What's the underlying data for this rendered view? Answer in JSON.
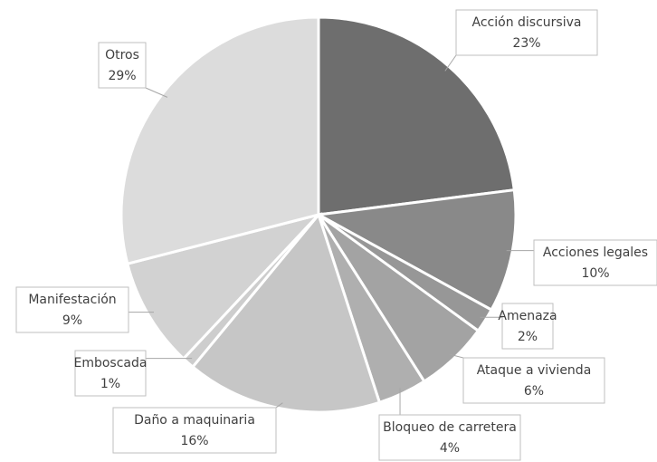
{
  "chart_data": {
    "type": "pie",
    "categories": [
      "Acción discursiva",
      "Acciones legales",
      "Amenaza",
      "Ataque a vivienda",
      "Bloqueo de carretera",
      "Daño a maquinaria",
      "Emboscada",
      "Manifestación",
      "Otros"
    ],
    "values": [
      23,
      10,
      2,
      6,
      4,
      16,
      1,
      9,
      29
    ],
    "value_labels": [
      "23%",
      "10%",
      "2%",
      "6%",
      "4%",
      "16%",
      "1%",
      "9%",
      "29%"
    ],
    "colors": [
      "#6e6e6e",
      "#898989",
      "#979797",
      "#a3a3a3",
      "#afafaf",
      "#c6c6c6",
      "#cdcdcd",
      "#d2d2d2",
      "#dcdcdc"
    ]
  }
}
